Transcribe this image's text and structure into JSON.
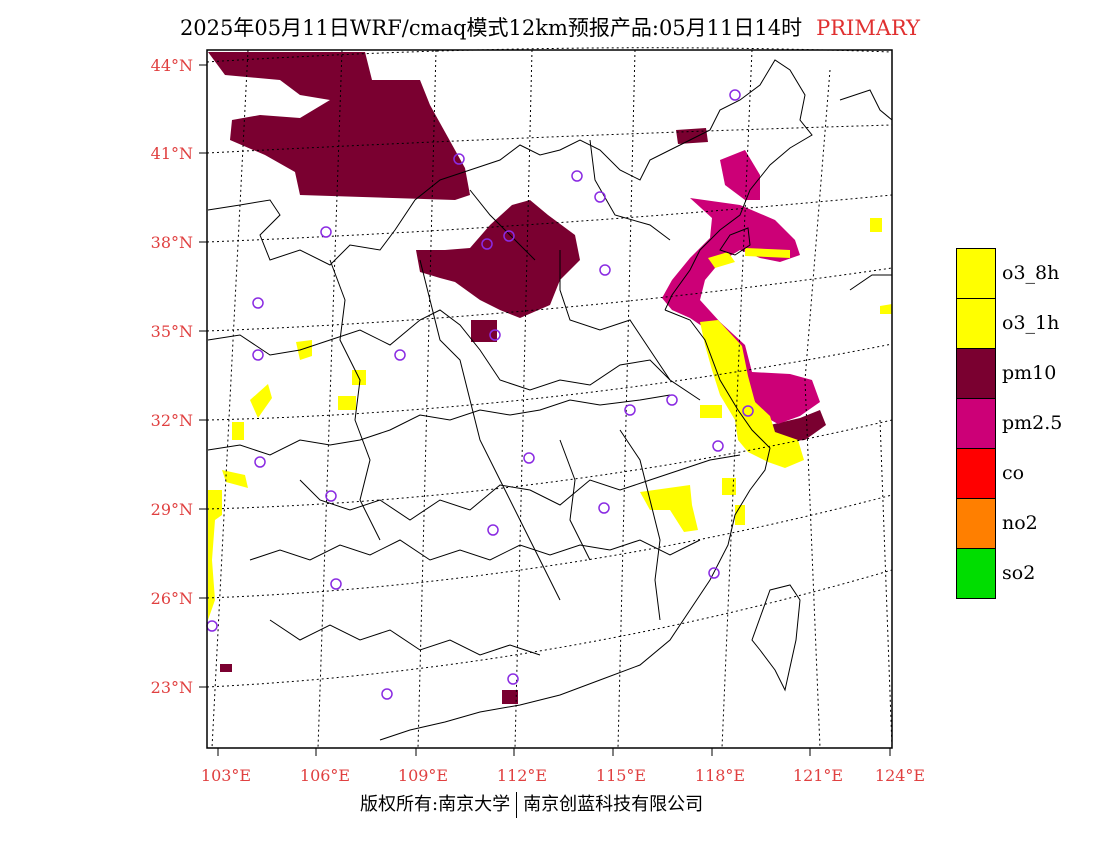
{
  "title": {
    "main": "2025年05月11日WRF/cmaq模式12km预报产品:05月11日14时",
    "tag": "PRIMARY"
  },
  "axes": {
    "lat_labels": [
      "44°N",
      "41°N",
      "38°N",
      "35°N",
      "32°N",
      "29°N",
      "26°N",
      "23°N"
    ],
    "lon_labels": [
      "103°E",
      "106°E",
      "109°E",
      "112°E",
      "115°E",
      "118°E",
      "121°E",
      "124°E"
    ],
    "label_color": "#e04040"
  },
  "legend": [
    {
      "label": "o3_8h",
      "color": "#ffff00"
    },
    {
      "label": "o3_1h",
      "color": "#ffff00"
    },
    {
      "label": "pm10",
      "color": "#7a0030"
    },
    {
      "label": "pm2.5",
      "color": "#cc0077"
    },
    {
      "label": "co",
      "color": "#ff0000"
    },
    {
      "label": "no2",
      "color": "#ff7f00"
    },
    {
      "label": "so2",
      "color": "#00dd00"
    }
  ],
  "footer": {
    "left": "版权所有:南京大学",
    "right": "南京创蓝科技有限公司"
  },
  "colors": {
    "pm10": "#7a0030",
    "pm25": "#cc0077",
    "o3": "#ffff00",
    "station": "#8a2be2"
  }
}
